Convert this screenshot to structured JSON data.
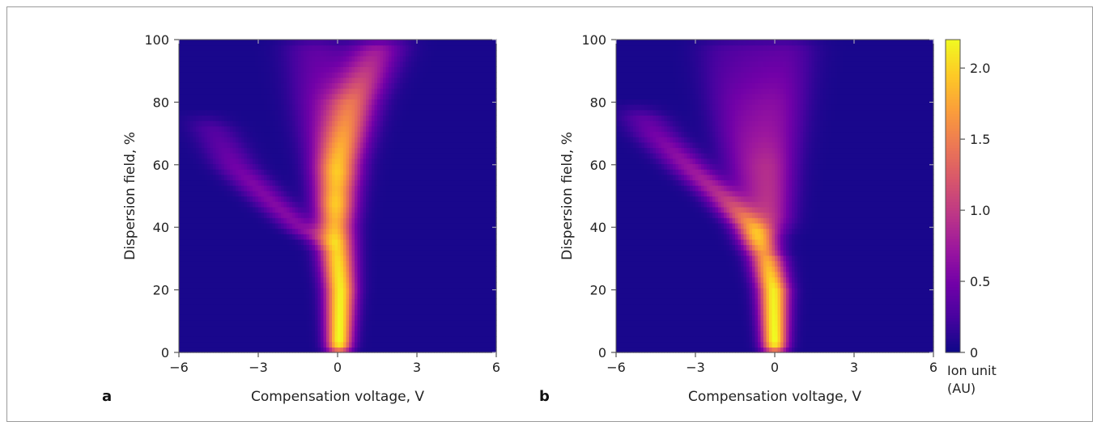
{
  "chart_data": [
    {
      "type": "heatmap",
      "panel_label": "a",
      "xlabel": "Compensation voltage, V",
      "ylabel": "Dispersion field, %",
      "xlim": [
        -6,
        6
      ],
      "ylim": [
        0,
        100
      ],
      "xticks": [
        -6,
        -3,
        0,
        3,
        6
      ],
      "yticks": [
        0,
        20,
        40,
        60,
        80,
        100
      ],
      "xtick_labels": [
        "−6",
        "−3",
        "0",
        "3",
        "6"
      ],
      "ytick_labels": [
        "0",
        "20",
        "40",
        "60",
        "80",
        "100"
      ],
      "branches": [
        {
          "cv": [
            [
              0,
              0.05
            ],
            [
              20,
              0.1
            ],
            [
              40,
              -0.1
            ],
            [
              60,
              0.05
            ],
            [
              80,
              0.6
            ],
            [
              100,
              1.6
            ]
          ],
          "peak": [
            [
              0,
              2.2
            ],
            [
              20,
              2.1
            ],
            [
              30,
              2.0
            ],
            [
              40,
              1.8
            ],
            [
              60,
              1.4
            ],
            [
              80,
              1.2
            ],
            [
              100,
              0.6
            ]
          ]
        },
        {
          "cv": [
            [
              35,
              -0.6
            ],
            [
              40,
              -1.4
            ],
            [
              50,
              -2.7
            ],
            [
              60,
              -3.9
            ],
            [
              70,
              -4.6
            ],
            [
              75,
              -5.0
            ]
          ],
          "peak": [
            [
              35,
              0.5
            ],
            [
              45,
              0.55
            ],
            [
              55,
              0.5
            ],
            [
              65,
              0.35
            ],
            [
              75,
              0.2
            ]
          ]
        },
        {
          "cv": [
            [
              45,
              -0.2
            ],
            [
              60,
              -0.5
            ],
            [
              80,
              -0.9
            ],
            [
              100,
              -1.2
            ]
          ],
          "peak": [
            [
              45,
              0.3
            ],
            [
              70,
              0.35
            ],
            [
              100,
              0.2
            ]
          ]
        },
        {
          "cv": [
            [
              55,
              0.1
            ],
            [
              70,
              0.0
            ],
            [
              90,
              -0.2
            ],
            [
              100,
              -0.4
            ]
          ],
          "peak": [
            [
              55,
              0.25
            ],
            [
              80,
              0.3
            ],
            [
              100,
              0.15
            ]
          ]
        }
      ]
    },
    {
      "type": "heatmap",
      "panel_label": "b",
      "xlabel": "Compensation voltage, V",
      "ylabel": "Dispersion field, %",
      "xlim": [
        -6,
        6
      ],
      "ylim": [
        0,
        100
      ],
      "xticks": [
        -6,
        -3,
        0,
        3,
        6
      ],
      "yticks": [
        0,
        20,
        40,
        60,
        80,
        100
      ],
      "xtick_labels": [
        "−6",
        "−3",
        "0",
        "3",
        "6"
      ],
      "ytick_labels": [
        "0",
        "20",
        "40",
        "60",
        "80",
        "100"
      ],
      "branches": [
        {
          "cv": [
            [
              0,
              0.0
            ],
            [
              20,
              -0.05
            ],
            [
              30,
              -0.3
            ],
            [
              40,
              -0.9
            ],
            [
              50,
              -2.0
            ],
            [
              60,
              -3.3
            ],
            [
              70,
              -4.5
            ],
            [
              78,
              -5.2
            ]
          ],
          "peak": [
            [
              0,
              2.2
            ],
            [
              20,
              2.1
            ],
            [
              30,
              1.7
            ],
            [
              40,
              1.2
            ],
            [
              50,
              0.85
            ],
            [
              60,
              0.65
            ],
            [
              70,
              0.45
            ],
            [
              78,
              0.25
            ]
          ]
        },
        {
          "cv": [
            [
              35,
              -0.5
            ],
            [
              50,
              -1.0
            ],
            [
              70,
              -1.5
            ],
            [
              90,
              -1.9
            ],
            [
              100,
              -2.1
            ]
          ],
          "peak": [
            [
              35,
              0.4
            ],
            [
              60,
              0.4
            ],
            [
              80,
              0.3
            ],
            [
              100,
              0.15
            ]
          ]
        },
        {
          "cv": [
            [
              35,
              -0.2
            ],
            [
              50,
              -0.3
            ],
            [
              70,
              -0.6
            ],
            [
              90,
              -0.7
            ],
            [
              100,
              -0.8
            ]
          ],
          "peak": [
            [
              35,
              0.4
            ],
            [
              60,
              0.45
            ],
            [
              80,
              0.35
            ],
            [
              100,
              0.2
            ]
          ]
        },
        {
          "cv": [
            [
              40,
              0.1
            ],
            [
              60,
              0.15
            ],
            [
              80,
              0.35
            ],
            [
              100,
              0.6
            ]
          ],
          "peak": [
            [
              40,
              0.35
            ],
            [
              60,
              0.45
            ],
            [
              80,
              0.4
            ],
            [
              100,
              0.25
            ]
          ]
        }
      ]
    }
  ],
  "colorbar": {
    "range": [
      0,
      2.2
    ],
    "ticks": [
      0,
      0.5,
      1.0,
      1.5,
      2.0
    ],
    "tick_labels": [
      "0",
      "0.5",
      "1.0",
      "1.5",
      "2.0"
    ],
    "label_line1": "Ion unit",
    "label_line2": "(AU)",
    "colormap": "plasma",
    "colormap_stops": [
      "#0d0887",
      "#46039f",
      "#7201a8",
      "#9c179e",
      "#bd3786",
      "#d8576b",
      "#ed7953",
      "#fb9f3a",
      "#fdca26",
      "#f0f921"
    ]
  }
}
